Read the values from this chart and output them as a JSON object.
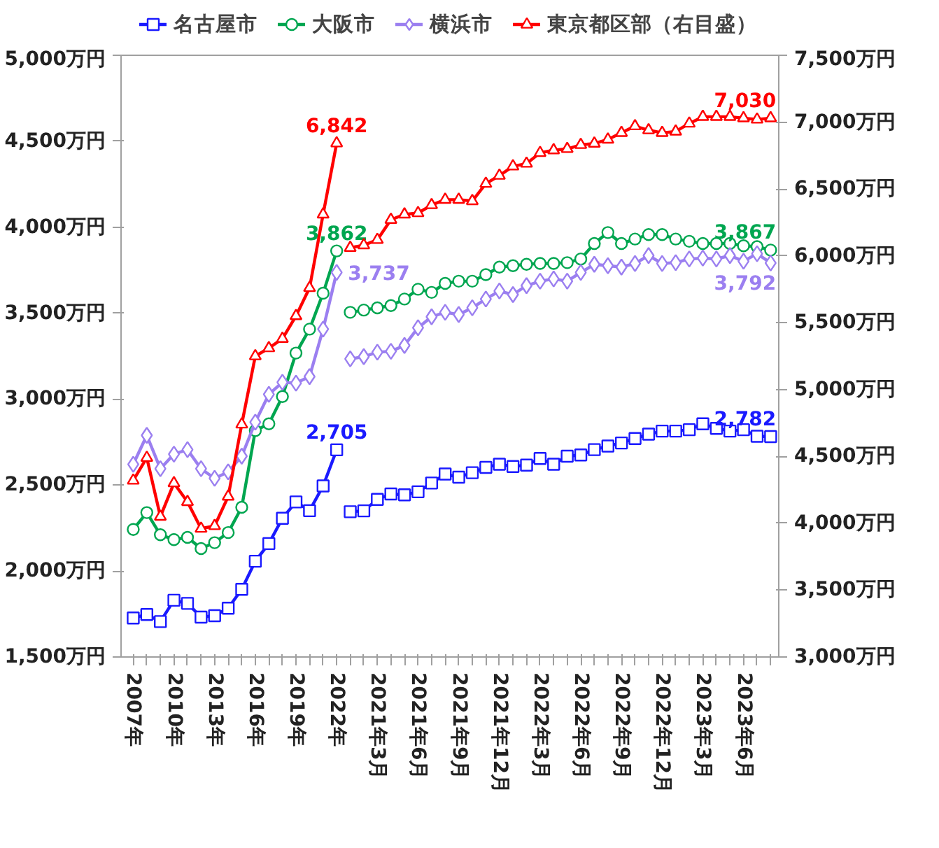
{
  "chart_data": {
    "type": "line",
    "categories": [
      "2007年",
      null,
      null,
      "2010年",
      null,
      null,
      "2013年",
      null,
      null,
      "2016年",
      null,
      null,
      "2019年",
      null,
      null,
      "2022年",
      null,
      null,
      "2021年3月",
      null,
      null,
      "2021年6月",
      null,
      null,
      "2021年9月",
      null,
      null,
      "2021年12月",
      null,
      null,
      "2022年3月",
      null,
      null,
      "2022年6月",
      null,
      null,
      "2022年9月",
      null,
      null,
      "2022年12月",
      null,
      null,
      "2023年3月",
      null,
      null,
      "2023年6月",
      null,
      null
    ],
    "ylim": [
      1500,
      5000
    ],
    "yticks": [
      {
        "value": 1500,
        "label": "1,500万円"
      },
      {
        "value": 2000,
        "label": "2,000万円"
      },
      {
        "value": 2500,
        "label": "2,500万円"
      },
      {
        "value": 3000,
        "label": "3,000万円"
      },
      {
        "value": 3500,
        "label": "3,500万円"
      },
      {
        "value": 4000,
        "label": "4,000万円"
      },
      {
        "value": 4500,
        "label": "4,500万円"
      },
      {
        "value": 5000,
        "label": "5,000万円"
      }
    ],
    "y2lim": [
      3000,
      7500
    ],
    "y2ticks": [
      {
        "value": 3000,
        "label": "3,000万円"
      },
      {
        "value": 3500,
        "label": "3,500万円"
      },
      {
        "value": 4000,
        "label": "4,000万円"
      },
      {
        "value": 4500,
        "label": "4,500万円"
      },
      {
        "value": 5000,
        "label": "5,000万円"
      },
      {
        "value": 5500,
        "label": "5,500万円"
      },
      {
        "value": 6000,
        "label": "6,000万円"
      },
      {
        "value": 6500,
        "label": "6,500万円"
      },
      {
        "value": 7000,
        "label": "7,000万円"
      },
      {
        "value": 7500,
        "label": "7,500万円"
      }
    ],
    "legend": "top",
    "series": [
      {
        "name": "名古屋市",
        "color": "#1a1aff",
        "marker": "square",
        "values": [
          1727,
          1747,
          1706,
          1830,
          1812,
          1732,
          1740,
          1784,
          1894,
          2057,
          2160,
          2307,
          2402,
          2351,
          2495,
          2705,
          null,
          null,
          null,
          null,
          null,
          null,
          null,
          null,
          null,
          null,
          null,
          null,
          null,
          null,
          null,
          null,
          null,
          null,
          null,
          null,
          null,
          null,
          null,
          null,
          null,
          null,
          null,
          null,
          null,
          null,
          null,
          null
        ],
        "value_labels": [
          null,
          null,
          null,
          null,
          null,
          null,
          null,
          null,
          null,
          null,
          null,
          null,
          null,
          null,
          null,
          "2,705",
          null,
          null,
          null,
          null,
          null,
          null,
          null,
          null,
          null,
          null,
          null,
          null,
          null,
          null,
          null,
          null,
          null,
          null,
          null,
          null,
          null,
          null,
          null,
          null,
          null,
          null,
          null,
          null,
          null,
          null,
          null,
          null
        ]
      },
      {
        "color": "#1a1aff",
        "marker": "square",
        "values": [
          null,
          null,
          null,
          null,
          null,
          null,
          null,
          null,
          null,
          null,
          null,
          null,
          null,
          null,
          null,
          null,
          2345,
          2350,
          2417,
          2448,
          2443,
          2461,
          2512,
          2564,
          2546,
          2572,
          2603,
          2621,
          2608,
          2616,
          2655,
          2621,
          2668,
          2675,
          2706,
          2727,
          2745,
          2771,
          2796,
          2814,
          2814,
          2822,
          2856,
          2830,
          2814,
          2822,
          2784,
          2782
        ],
        "value_labels": [
          null,
          null,
          null,
          null,
          null,
          null,
          null,
          null,
          null,
          null,
          null,
          null,
          null,
          null,
          null,
          null,
          null,
          null,
          null,
          null,
          null,
          null,
          null,
          null,
          null,
          null,
          null,
          null,
          null,
          null,
          null,
          null,
          null,
          null,
          null,
          null,
          null,
          null,
          null,
          null,
          null,
          null,
          null,
          null,
          null,
          null,
          null,
          "2,782"
        ]
      },
      {
        "name": "大阪市",
        "color": "#00a650",
        "marker": "circle",
        "values": [
          2242,
          2340,
          2211,
          2183,
          2196,
          2131,
          2165,
          2224,
          2371,
          2817,
          2856,
          3015,
          3268,
          3407,
          3616,
          3862,
          null,
          null,
          null,
          null,
          null,
          null,
          null,
          null,
          null,
          null,
          null,
          null,
          null,
          null,
          null,
          null,
          null,
          null,
          null,
          null,
          null,
          null,
          null,
          null,
          null,
          null,
          null,
          null,
          null,
          null,
          null,
          null
        ],
        "value_labels": [
          null,
          null,
          null,
          null,
          null,
          null,
          null,
          null,
          null,
          null,
          null,
          null,
          null,
          null,
          null,
          "3,862",
          null,
          null,
          null,
          null,
          null,
          null,
          null,
          null,
          null,
          null,
          null,
          null,
          null,
          null,
          null,
          null,
          null,
          null,
          null,
          null,
          null,
          null,
          null,
          null,
          null,
          null,
          null,
          null,
          null,
          null,
          null,
          null
        ]
      },
      {
        "color": "#00a650",
        "marker": "circle",
        "values": [
          null,
          null,
          null,
          null,
          null,
          null,
          null,
          null,
          null,
          null,
          null,
          null,
          null,
          null,
          null,
          null,
          3505,
          3518,
          3531,
          3544,
          3582,
          3639,
          3621,
          3673,
          3686,
          3686,
          3724,
          3768,
          3776,
          3784,
          3789,
          3789,
          3794,
          3815,
          3905,
          3969,
          3905,
          3931,
          3957,
          3957,
          3931,
          3918,
          3905,
          3905,
          3905,
          3892,
          3887,
          3867
        ],
        "value_labels": [
          null,
          null,
          null,
          null,
          null,
          null,
          null,
          null,
          null,
          null,
          null,
          null,
          null,
          null,
          null,
          null,
          null,
          null,
          null,
          null,
          null,
          null,
          null,
          null,
          null,
          null,
          null,
          null,
          null,
          null,
          null,
          null,
          null,
          null,
          null,
          null,
          null,
          null,
          null,
          null,
          null,
          null,
          null,
          null,
          null,
          null,
          null,
          "3,867"
        ]
      },
      {
        "name": "横浜市",
        "color": "#9b7ff0",
        "marker": "diamond",
        "values": [
          2621,
          2789,
          2595,
          2680,
          2706,
          2595,
          2539,
          2577,
          2668,
          2866,
          3028,
          3098,
          3093,
          3131,
          3407,
          3737,
          null,
          null,
          null,
          null,
          null,
          null,
          null,
          null,
          null,
          null,
          null,
          null,
          null,
          null,
          null,
          null,
          null,
          null,
          null,
          null,
          null,
          null,
          null,
          null,
          null,
          null,
          null,
          null,
          null,
          null,
          null,
          null
        ],
        "value_labels": [
          null,
          null,
          null,
          null,
          null,
          null,
          null,
          null,
          null,
          null,
          null,
          null,
          null,
          null,
          null,
          "3,737",
          null,
          null,
          null,
          null,
          null,
          null,
          null,
          null,
          null,
          null,
          null,
          null,
          null,
          null,
          null,
          null,
          null,
          null,
          null,
          null,
          null,
          null,
          null,
          null,
          null,
          null,
          null,
          null,
          null,
          null,
          null,
          null
        ]
      },
      {
        "color": "#9b7ff0",
        "marker": "diamond",
        "values": [
          null,
          null,
          null,
          null,
          null,
          null,
          null,
          null,
          null,
          null,
          null,
          null,
          null,
          null,
          null,
          null,
          3234,
          3247,
          3273,
          3278,
          3312,
          3415,
          3479,
          3505,
          3492,
          3531,
          3582,
          3629,
          3608,
          3660,
          3686,
          3699,
          3686,
          3737,
          3784,
          3776,
          3768,
          3789,
          3835,
          3789,
          3794,
          3815,
          3820,
          3815,
          3835,
          3802,
          3846,
          3792
        ],
        "value_labels": [
          null,
          null,
          null,
          null,
          null,
          null,
          null,
          null,
          null,
          null,
          null,
          null,
          null,
          null,
          null,
          null,
          null,
          null,
          null,
          null,
          null,
          null,
          null,
          null,
          null,
          null,
          null,
          null,
          null,
          null,
          null,
          null,
          null,
          null,
          null,
          null,
          null,
          null,
          null,
          null,
          null,
          null,
          null,
          null,
          null,
          null,
          null,
          "3,792"
        ]
      },
      {
        "name": "東京都区部（右目盛）",
        "color": "#ff0000",
        "marker": "triangle",
        "axis": "y2",
        "values": [
          4320,
          4490,
          4050,
          4300,
          4160,
          3960,
          3980,
          4200,
          4740,
          5250,
          5310,
          5380,
          5550,
          5760,
          6310,
          6842,
          null,
          null,
          null,
          null,
          null,
          null,
          null,
          null,
          null,
          null,
          null,
          null,
          null,
          null,
          null,
          null,
          null,
          null,
          null,
          null,
          null,
          null,
          null,
          null,
          null,
          null,
          null,
          null,
          null,
          null,
          null,
          null
        ],
        "value_labels": [
          null,
          null,
          null,
          null,
          null,
          null,
          null,
          null,
          null,
          null,
          null,
          null,
          null,
          null,
          null,
          "6,842",
          null,
          null,
          null,
          null,
          null,
          null,
          null,
          null,
          null,
          null,
          null,
          null,
          null,
          null,
          null,
          null,
          null,
          null,
          null,
          null,
          null,
          null,
          null,
          null,
          null,
          null,
          null,
          null,
          null,
          null,
          null,
          null
        ]
      },
      {
        "color": "#ff0000",
        "marker": "triangle",
        "axis": "y2",
        "values": [
          null,
          null,
          null,
          null,
          null,
          null,
          null,
          null,
          null,
          null,
          null,
          null,
          null,
          null,
          null,
          null,
          6060,
          6080,
          6120,
          6270,
          6310,
          6320,
          6380,
          6420,
          6420,
          6410,
          6540,
          6600,
          6670,
          6690,
          6770,
          6790,
          6800,
          6830,
          6840,
          6870,
          6920,
          6970,
          6940,
          6920,
          6930,
          6990,
          7040,
          7040,
          7040,
          7030,
          7020,
          7030
        ],
        "value_labels": [
          null,
          null,
          null,
          null,
          null,
          null,
          null,
          null,
          null,
          null,
          null,
          null,
          null,
          null,
          null,
          null,
          null,
          null,
          null,
          null,
          null,
          null,
          null,
          null,
          null,
          null,
          null,
          null,
          null,
          null,
          null,
          null,
          null,
          null,
          null,
          null,
          null,
          null,
          null,
          null,
          null,
          null,
          null,
          null,
          null,
          null,
          null,
          "7,030"
        ]
      }
    ]
  }
}
